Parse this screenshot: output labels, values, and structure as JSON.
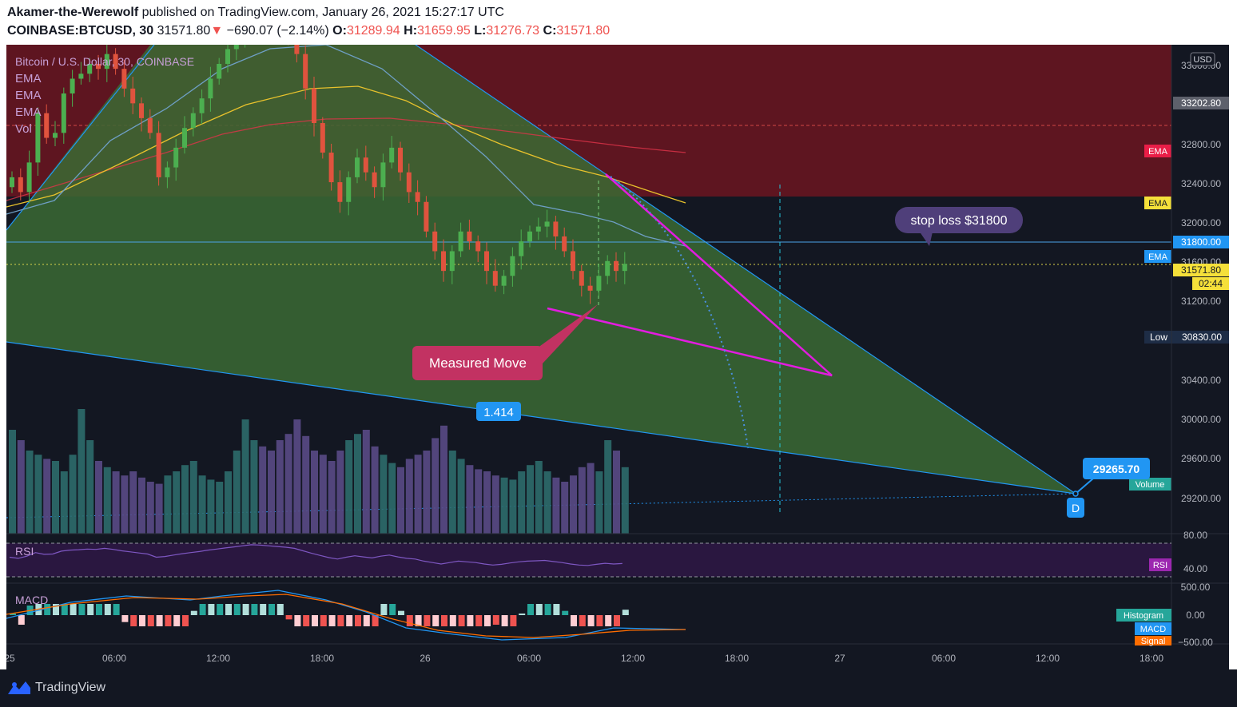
{
  "header": {
    "author": "Akamer-the-Werewolf",
    "published": "published on TradingView.com, January 26, 2021 15:27:17 UTC",
    "symbol": "COINBASE:BTCUSD, 30",
    "last": "31571.80",
    "change": "−690.07 (−2.14%)",
    "o_label": "O:",
    "o": "31289.94",
    "h_label": "H:",
    "h": "31659.95",
    "l_label": "L:",
    "l": "31276.73",
    "c_label": "C:",
    "c": "31571.80"
  },
  "legend": {
    "title": "Bitcoin / U.S. Dollar, 30, COINBASE",
    "ema1": "EMA",
    "ema2": "EMA",
    "ema3": "EMA",
    "vol": "Vol"
  },
  "annotations": {
    "stop_loss": "stop loss $31800",
    "measured_move": "Measured Move",
    "fib": "1.414",
    "target_price": "29265.70",
    "point_d": "D"
  },
  "price_axis": {
    "currency": "USD",
    "ticks": [
      "33600.00",
      "32800.00",
      "32400.00",
      "32000.00",
      "31600.00",
      "31200.00",
      "30400.00",
      "30000.00",
      "29600.00",
      "29200.00"
    ],
    "badges": {
      "top_price": "33202.80",
      "ema_red": "EMA",
      "ema_yellow": "EMA",
      "stop": "31800.00",
      "ema_blue": "EMA",
      "last": "31571.80",
      "countdown": "02:44",
      "low_label": "Low",
      "low": "30830.00",
      "volume": "Volume"
    }
  },
  "rsi": {
    "label": "RSI",
    "badge": "RSI",
    "ticks": [
      "80.00",
      "40.00"
    ]
  },
  "macd": {
    "label": "MACD",
    "ticks": [
      "500.00",
      "0.00",
      "−500.00"
    ],
    "badges": [
      "Histogram",
      "MACD",
      "Signal"
    ]
  },
  "time_axis": {
    "ticks": [
      "25",
      "06:00",
      "12:00",
      "18:00",
      "26",
      "06:00",
      "12:00",
      "18:00",
      "27",
      "06:00",
      "12:00",
      "18:00"
    ]
  },
  "footer": {
    "brand": "TradingView"
  },
  "colors": {
    "up": "#26a69a",
    "down": "#ef5350",
    "magenta": "#e21ce0",
    "trend": "#2196f3"
  },
  "chart_data": {
    "type": "candlestick",
    "symbol": "BTCUSD",
    "interval": "30",
    "x_start": "2021-01-25 00:00",
    "x_end": "2021-01-27 18:00",
    "ylim": [
      29000,
      33800
    ],
    "close_series": [
      32450,
      32300,
      32600,
      33100,
      32850,
      32900,
      33300,
      33450,
      33500,
      33600,
      33550,
      33700,
      33550,
      33350,
      33200,
      33050,
      32900,
      32450,
      32550,
      32750,
      32950,
      33100,
      33250,
      33450,
      33600,
      33750,
      33900,
      34050,
      34200,
      34150,
      34050,
      33950,
      33850,
      33700,
      33350,
      33000,
      32700,
      32400,
      32200,
      32450,
      32650,
      32500,
      32350,
      32600,
      32750,
      32500,
      32300,
      32200,
      31900,
      31700,
      31500,
      31700,
      31900,
      31800,
      31700,
      31500,
      31350,
      31450,
      31650,
      31800,
      31900,
      31950,
      32000,
      31850,
      31700,
      31500,
      31350,
      31300,
      31450,
      31600,
      31500,
      31571.8
    ],
    "volume_series": [
      50,
      45,
      40,
      38,
      36,
      35,
      30,
      38,
      60,
      45,
      35,
      32,
      30,
      28,
      30,
      27,
      25,
      24,
      28,
      30,
      33,
      35,
      28,
      26,
      25,
      30,
      40,
      55,
      45,
      42,
      40,
      45,
      48,
      55,
      47,
      40,
      38,
      35,
      40,
      45,
      48,
      50,
      42,
      38,
      34,
      32,
      36,
      38,
      40,
      46,
      52,
      40,
      36,
      33,
      31,
      30,
      28,
      27,
      26,
      30,
      33,
      35,
      30,
      27,
      25,
      28,
      32,
      34,
      30,
      45,
      40,
      32
    ],
    "levels": {
      "stop_loss": 31800,
      "last": 31571.8,
      "low": 30830,
      "target": 29265.7,
      "red_zone_bottom": 32280,
      "top_label": 33202.8
    }
  }
}
